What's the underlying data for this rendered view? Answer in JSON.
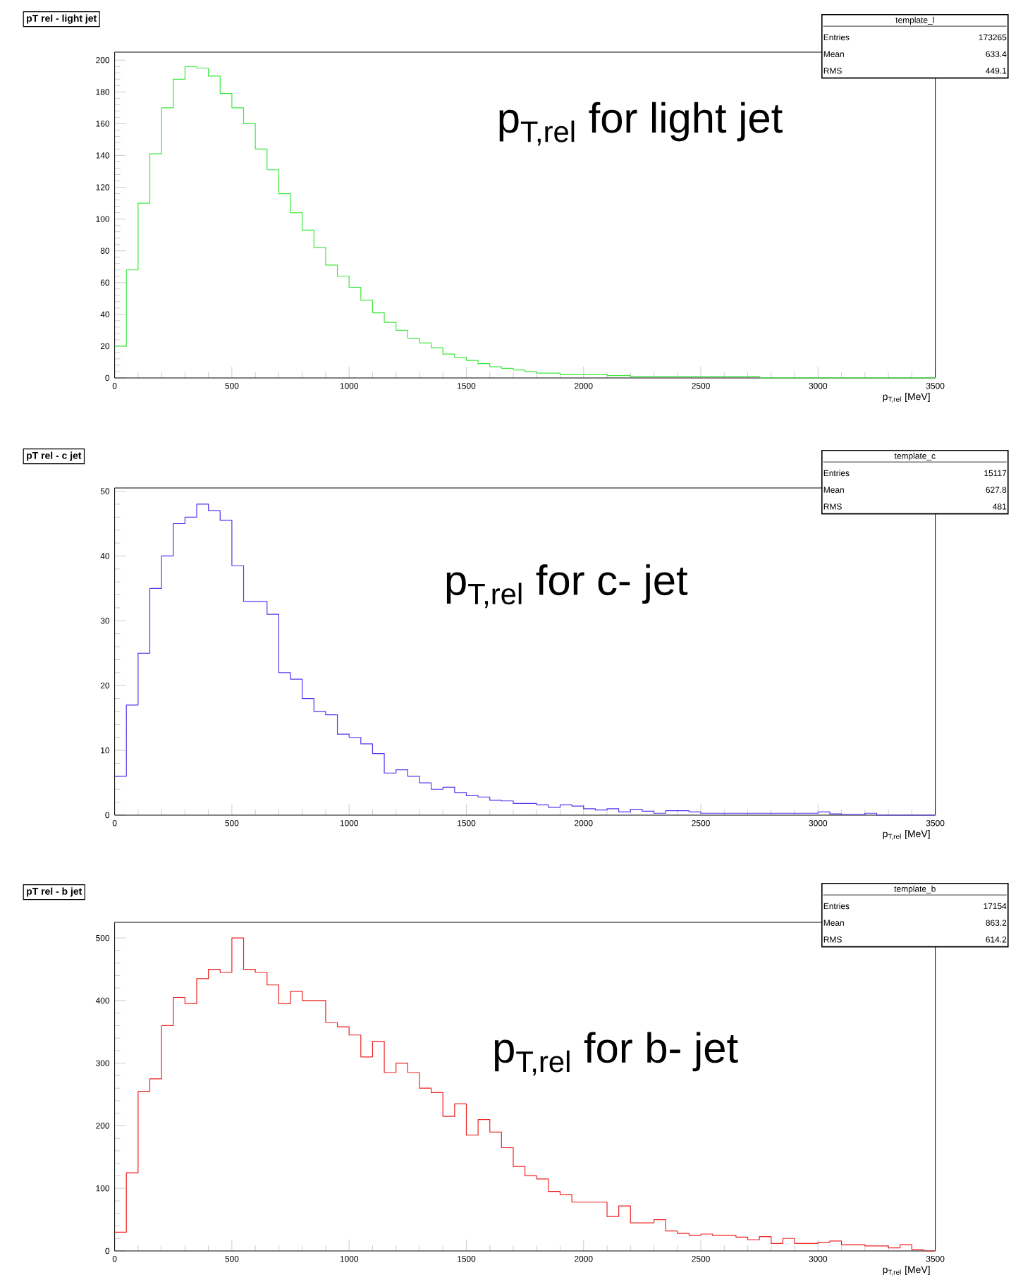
{
  "chart_data": [
    {
      "type": "histogram",
      "title": "pT rel - light jet",
      "xlabel": "p$_{T,rel}$ [MeV]",
      "color": "#3ee83e",
      "bins": [
        0,
        50,
        100,
        150,
        200,
        250,
        300,
        350,
        400,
        450,
        500,
        550,
        600,
        650,
        700,
        750,
        800,
        850,
        900,
        950,
        1000,
        1050,
        1100,
        1150,
        1200,
        1250,
        1300,
        1350,
        1400,
        1450,
        1500,
        1550,
        1600,
        1650,
        1700,
        1750,
        1800,
        1850,
        1900,
        1950,
        2000,
        2050,
        2100,
        2150,
        2200,
        2250,
        2300,
        2350,
        2400,
        2450,
        2500,
        2550,
        2600,
        2650,
        2700,
        2750,
        2800,
        2850,
        2900,
        2950,
        3000,
        3050,
        3100,
        3150,
        3200,
        3250,
        3300,
        3350,
        3400,
        3450,
        3500
      ],
      "values": [
        20,
        68,
        110,
        141,
        170,
        188,
        196,
        195,
        190,
        179,
        170,
        160,
        144,
        131,
        116,
        104,
        93,
        82,
        71,
        64,
        57,
        49,
        41,
        35,
        30,
        25,
        22,
        19,
        15,
        13,
        11,
        9,
        7,
        6,
        5,
        4,
        3,
        3,
        2,
        2,
        2,
        2,
        1.5,
        1.5,
        1,
        1,
        1,
        1,
        1,
        1,
        1,
        1,
        1,
        1,
        1,
        0,
        0,
        0,
        0,
        0,
        0,
        0,
        0,
        0,
        0,
        0,
        0,
        0,
        0,
        0
      ],
      "xlim": [
        0,
        3500
      ],
      "xticks": [
        0,
        500,
        1000,
        1500,
        2000,
        2500,
        3000,
        3500
      ],
      "ylim": [
        0,
        205
      ],
      "yticks": [
        0,
        20,
        40,
        60,
        80,
        100,
        120,
        140,
        160,
        180,
        200
      ],
      "annotations": [
        "p$_{T,rel}$ for light jet",
        "template_l",
        "Entries",
        "173265",
        "Mean",
        "633.4",
        "RMS",
        "449.1"
      ]
    },
    {
      "type": "histogram",
      "title": "pT rel - c jet",
      "xlabel": "p$_{T,rel}$ [MeV]",
      "color": "#5a33ee",
      "bins": [
        0,
        50,
        100,
        150,
        200,
        250,
        300,
        350,
        400,
        450,
        500,
        550,
        600,
        650,
        700,
        750,
        800,
        850,
        900,
        950,
        1000,
        1050,
        1100,
        1150,
        1200,
        1250,
        1300,
        1350,
        1400,
        1450,
        1500,
        1550,
        1600,
        1650,
        1700,
        1750,
        1800,
        1850,
        1900,
        1950,
        2000,
        2050,
        2100,
        2150,
        2200,
        2250,
        2300,
        2350,
        2400,
        2450,
        2500,
        2550,
        2600,
        2650,
        2700,
        2750,
        2800,
        2850,
        2900,
        2950,
        3000,
        3050,
        3100,
        3150,
        3200,
        3250,
        3300,
        3350,
        3400,
        3450,
        3500
      ],
      "values": [
        6,
        17,
        25,
        35,
        40,
        45,
        46,
        48,
        47,
        45.5,
        38.5,
        33,
        33,
        31,
        22,
        21,
        18,
        16,
        15.5,
        12.5,
        12,
        11,
        9.5,
        6.5,
        7,
        6,
        5,
        4,
        4.3,
        3.5,
        3,
        2.8,
        2.3,
        2.2,
        1.8,
        1.8,
        1.6,
        1.2,
        1.6,
        1.4,
        1,
        0.8,
        1,
        0.5,
        0.9,
        0.6,
        0.3,
        0.7,
        0.7,
        0.5,
        0.3,
        0.3,
        0.3,
        0.3,
        0.3,
        0.3,
        0.3,
        0.3,
        0.3,
        0.3,
        0.5,
        0.2,
        0.1,
        0.1,
        0.3,
        0,
        0,
        0,
        0,
        0
      ],
      "xlim": [
        0,
        3500
      ],
      "xticks": [
        0,
        500,
        1000,
        1500,
        2000,
        2500,
        3000,
        3500
      ],
      "ylim": [
        0,
        50.5
      ],
      "yticks": [
        0,
        10,
        20,
        30,
        40,
        50
      ],
      "annotations": [
        "p$_{T,rel}$ for c- jet",
        "template_c",
        "Entries",
        "15117",
        "Mean",
        "627.8",
        "RMS",
        "481"
      ]
    },
    {
      "type": "histogram",
      "title": "pT rel - b jet",
      "xlabel": "p$_{T,rel}$ [MeV]",
      "color": "#ee2222",
      "bins": [
        0,
        50,
        100,
        150,
        200,
        250,
        300,
        350,
        400,
        450,
        500,
        550,
        600,
        650,
        700,
        750,
        800,
        850,
        900,
        950,
        1000,
        1050,
        1100,
        1150,
        1200,
        1250,
        1300,
        1350,
        1400,
        1450,
        1500,
        1550,
        1600,
        1650,
        1700,
        1750,
        1800,
        1850,
        1900,
        1950,
        2000,
        2050,
        2100,
        2150,
        2200,
        2250,
        2300,
        2350,
        2400,
        2450,
        2500,
        2550,
        2600,
        2650,
        2700,
        2750,
        2800,
        2850,
        2900,
        2950,
        3000,
        3050,
        3100,
        3150,
        3200,
        3250,
        3300,
        3350,
        3400,
        3450,
        3500
      ],
      "values": [
        30,
        125,
        255,
        275,
        360,
        405,
        395,
        435,
        450,
        445,
        500,
        450,
        445,
        425,
        395,
        415,
        400,
        400,
        365,
        358,
        345,
        310,
        335,
        285,
        300,
        285,
        260,
        253,
        215,
        235,
        185,
        210,
        190,
        165,
        135,
        120,
        115,
        95,
        90,
        78,
        78,
        78,
        55,
        72,
        45,
        45,
        50,
        32,
        28,
        25,
        27,
        25,
        25,
        22,
        18,
        23,
        12,
        20,
        12,
        12,
        14,
        16,
        10,
        10,
        8,
        8,
        5,
        10,
        2,
        0
      ],
      "xlim": [
        0,
        3500
      ],
      "xticks": [
        0,
        500,
        1000,
        1500,
        2000,
        2500,
        3000,
        3500
      ],
      "ylim": [
        0,
        525
      ],
      "yticks": [
        0,
        100,
        200,
        300,
        400,
        500
      ],
      "annotations": [
        "p$_{T,rel}$ for b- jet",
        "template_b",
        "Entries",
        "17154",
        "Mean",
        "863.2",
        "RMS",
        "614.2"
      ]
    }
  ]
}
